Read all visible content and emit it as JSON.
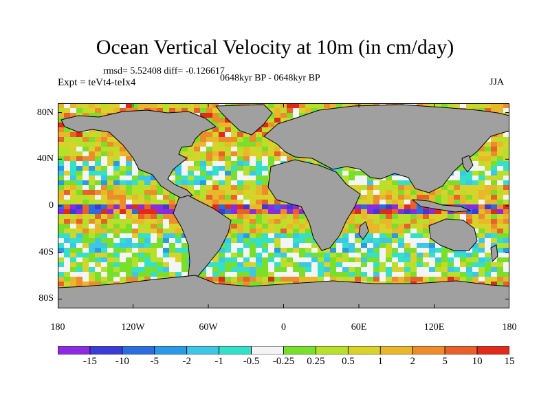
{
  "title": "Ocean Vertical Velocity at 10m (in cm/day)",
  "stats": "rmsd= 5.52408 diff= -0.126617",
  "experiment": "Expt = teVt4-teIx4",
  "period": "0648kyr BP - 0648kyr BP",
  "season": "JJA",
  "map": {
    "lat_ticks": [
      {
        "label": "80N",
        "lat": 80
      },
      {
        "label": "40N",
        "lat": 40
      },
      {
        "label": "0",
        "lat": 0
      },
      {
        "label": "40S",
        "lat": -40
      },
      {
        "label": "80S",
        "lat": -80
      }
    ],
    "lon_ticks": [
      {
        "label": "180",
        "lon": -180
      },
      {
        "label": "120W",
        "lon": -120
      },
      {
        "label": "60W",
        "lon": -60
      },
      {
        "label": "0",
        "lon": 0
      },
      {
        "label": "60E",
        "lon": 60
      },
      {
        "label": "120E",
        "lon": 120
      },
      {
        "label": "180",
        "lon": 180
      }
    ],
    "land_color": "#a0a0a0"
  },
  "colorbar": {
    "colors": [
      "#8a2be2",
      "#3b3bd8",
      "#2b6de0",
      "#2a9ae6",
      "#3cc6e8",
      "#34e0c8",
      "#f4f4f4",
      "#7adf2a",
      "#b7e02a",
      "#d8d22a",
      "#e8b82a",
      "#ec8c2a",
      "#e8602a",
      "#e02a1a"
    ],
    "labels": [
      "-15",
      "-10",
      "-5",
      "-2",
      "-1",
      "-0.5",
      "-0.25",
      "0.25",
      "0.5",
      "1",
      "2",
      "5",
      "10",
      "15"
    ]
  }
}
